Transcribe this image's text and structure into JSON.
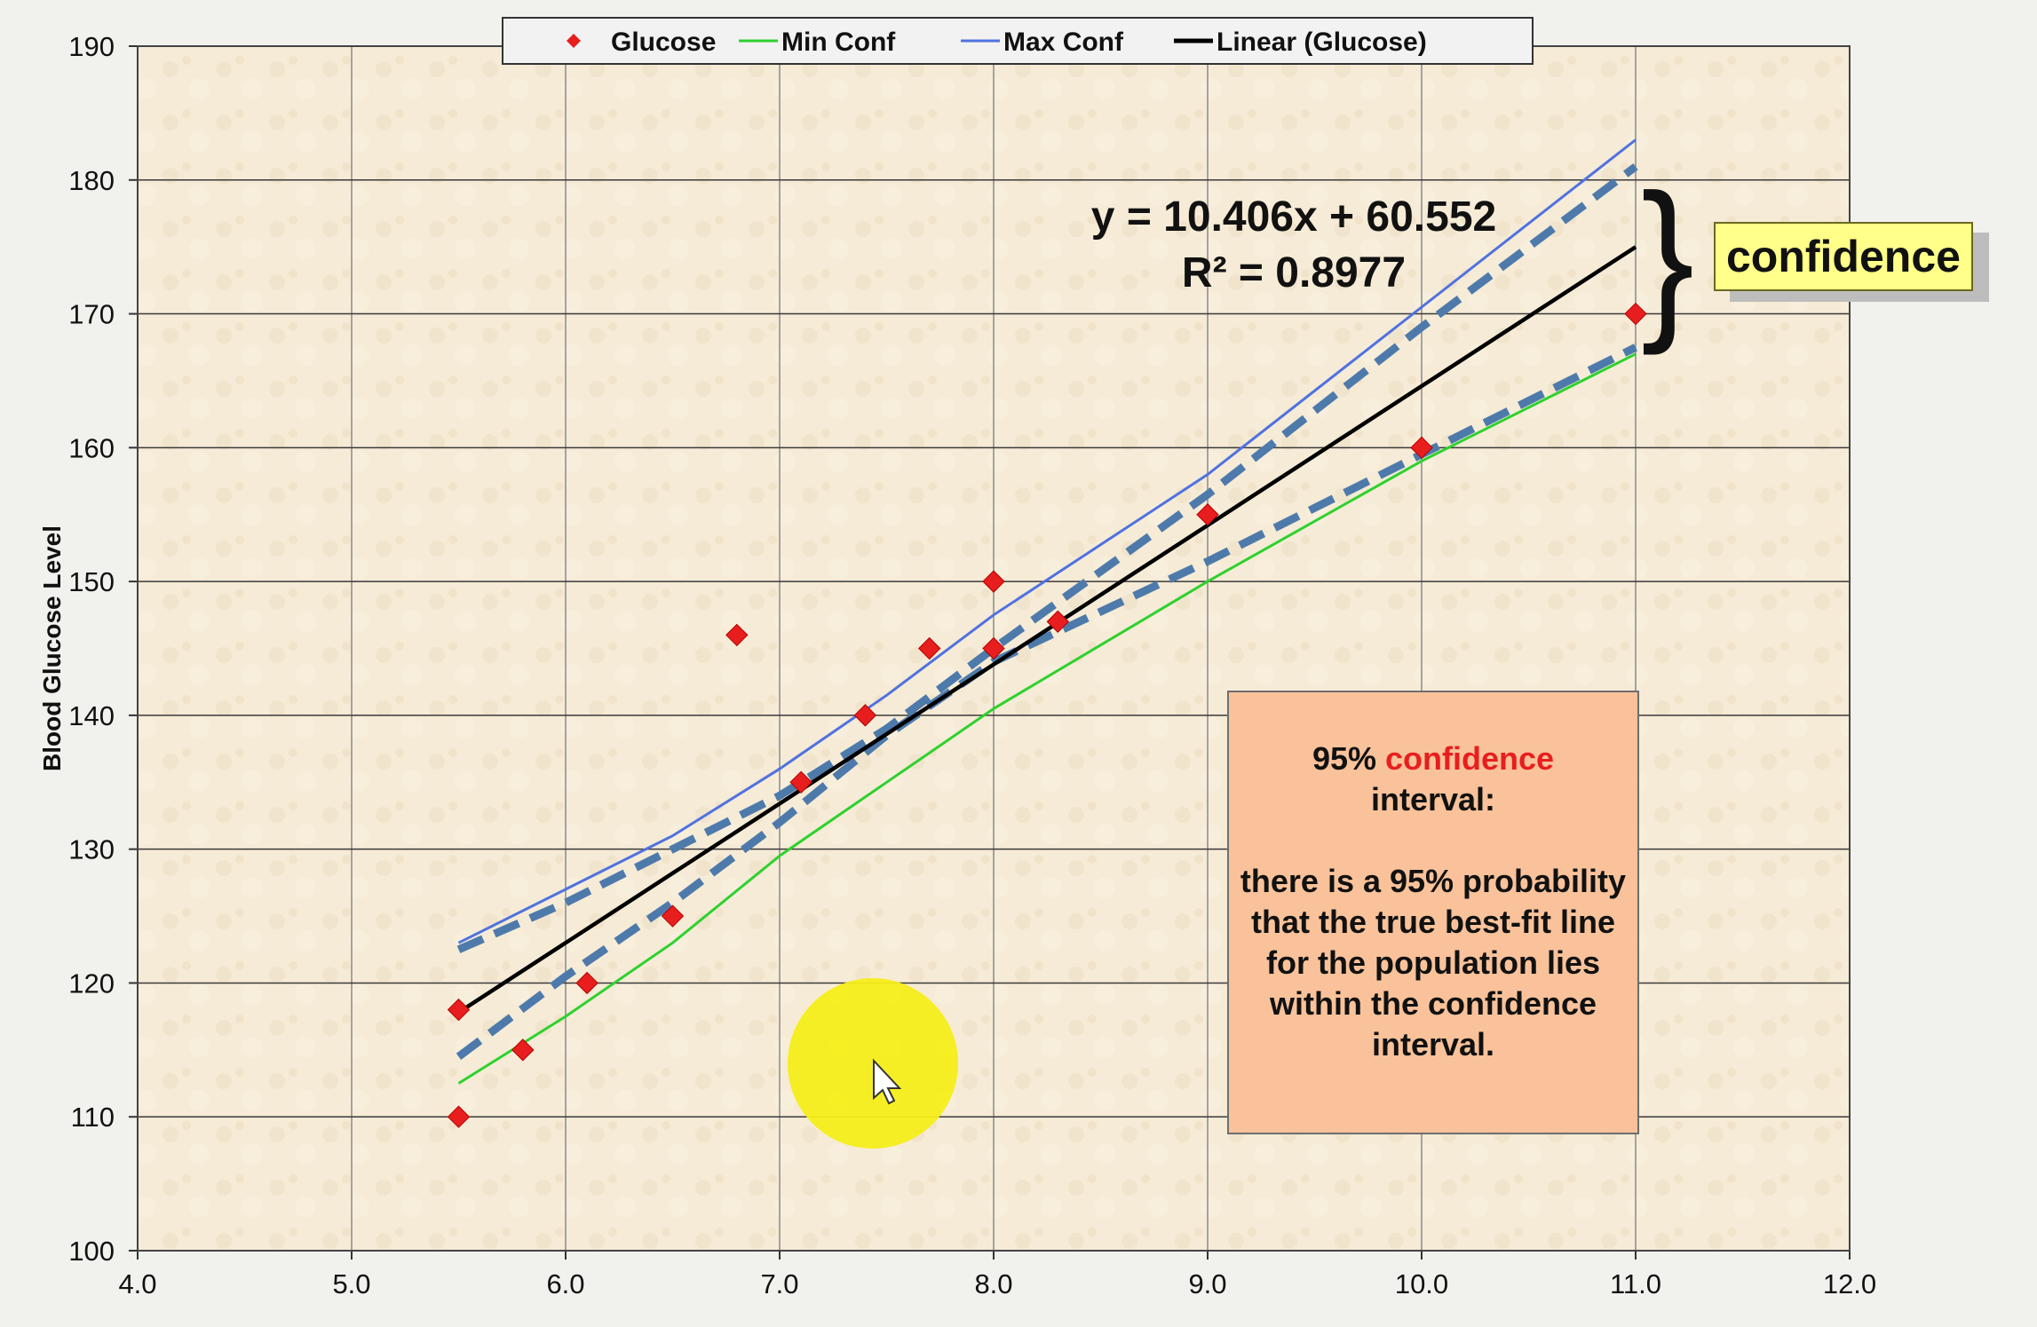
{
  "chart_data": {
    "type": "scatter",
    "ylabel": "Blood Glucose Level",
    "xlim": [
      4.0,
      12.0
    ],
    "ylim": [
      100,
      190
    ],
    "x_ticks": [
      "4.0",
      "5.0",
      "6.0",
      "7.0",
      "8.0",
      "9.0",
      "10.0",
      "11.0",
      "12.0"
    ],
    "y_ticks": [
      "100",
      "110",
      "120",
      "130",
      "140",
      "150",
      "160",
      "170",
      "180",
      "190"
    ],
    "grid": true,
    "legend_position": "top",
    "legend": [
      "Glucose",
      "Min Conf",
      "Max Conf",
      "Linear (Glucose)"
    ],
    "series": [
      {
        "name": "Glucose",
        "kind": "points",
        "color": "#e81e1e",
        "points": [
          [
            5.5,
            110
          ],
          [
            5.5,
            118
          ],
          [
            5.8,
            115
          ],
          [
            6.1,
            120
          ],
          [
            6.5,
            125
          ],
          [
            6.8,
            146
          ],
          [
            7.1,
            135
          ],
          [
            7.4,
            140
          ],
          [
            7.7,
            145
          ],
          [
            8.0,
            145
          ],
          [
            8.0,
            150
          ],
          [
            8.3,
            147
          ],
          [
            9.0,
            155
          ],
          [
            10.0,
            160
          ],
          [
            11.0,
            170
          ]
        ]
      },
      {
        "name": "Min Conf",
        "kind": "line",
        "color": "#2ed12e",
        "points": [
          [
            5.5,
            112.5
          ],
          [
            6.0,
            117.5
          ],
          [
            6.5,
            123
          ],
          [
            7.0,
            129.5
          ],
          [
            7.5,
            135
          ],
          [
            8.0,
            140.5
          ],
          [
            9.0,
            150
          ],
          [
            10.0,
            159
          ],
          [
            11.0,
            167
          ]
        ]
      },
      {
        "name": "Max Conf",
        "kind": "line",
        "color": "#4f72e0",
        "points": [
          [
            5.5,
            123
          ],
          [
            6.0,
            127
          ],
          [
            6.5,
            131
          ],
          [
            7.0,
            136
          ],
          [
            7.5,
            141.5
          ],
          [
            8.0,
            147.5
          ],
          [
            9.0,
            158
          ],
          [
            10.0,
            170.5
          ],
          [
            11.0,
            183
          ]
        ]
      },
      {
        "name": "Linear (Glucose)",
        "kind": "line",
        "color": "#000000",
        "points": [
          [
            5.5,
            117.8
          ],
          [
            11.0,
            175.0
          ]
        ]
      },
      {
        "name": "",
        "kind": "dashed",
        "color": "#4e7aab",
        "points": [
          [
            5.5,
            122.5
          ],
          [
            6.0,
            126
          ],
          [
            6.5,
            130
          ],
          [
            7.0,
            134
          ],
          [
            7.5,
            139
          ],
          [
            8.0,
            145
          ],
          [
            9.0,
            156.5
          ],
          [
            10.0,
            169
          ],
          [
            11.0,
            181
          ]
        ]
      },
      {
        "name": "",
        "kind": "dashed",
        "color": "#4e7aab",
        "points": [
          [
            5.5,
            114.5
          ],
          [
            6.0,
            120.5
          ],
          [
            6.5,
            126
          ],
          [
            7.0,
            132
          ],
          [
            7.5,
            138.5
          ],
          [
            8.0,
            144
          ],
          [
            9.0,
            151.5
          ],
          [
            10.0,
            159.5
          ],
          [
            11.0,
            167.5
          ]
        ]
      }
    ],
    "equation": "y = 10.406x + 60.552",
    "r_squared": "R² = 0.8977"
  },
  "annotation": {
    "brace_label": "confidence",
    "info_pct": "95%",
    "info_red": "confidence",
    "info_interval": "interval:",
    "info_body": "there is a 95% probability that the true best-fit line for the population lies within the confidence interval."
  },
  "colors": {
    "plot_background": "#f6ebd6",
    "highlight": "#f5ee1a",
    "info_fill": "#f9c29a",
    "tag_fill": "#ffff8a"
  }
}
